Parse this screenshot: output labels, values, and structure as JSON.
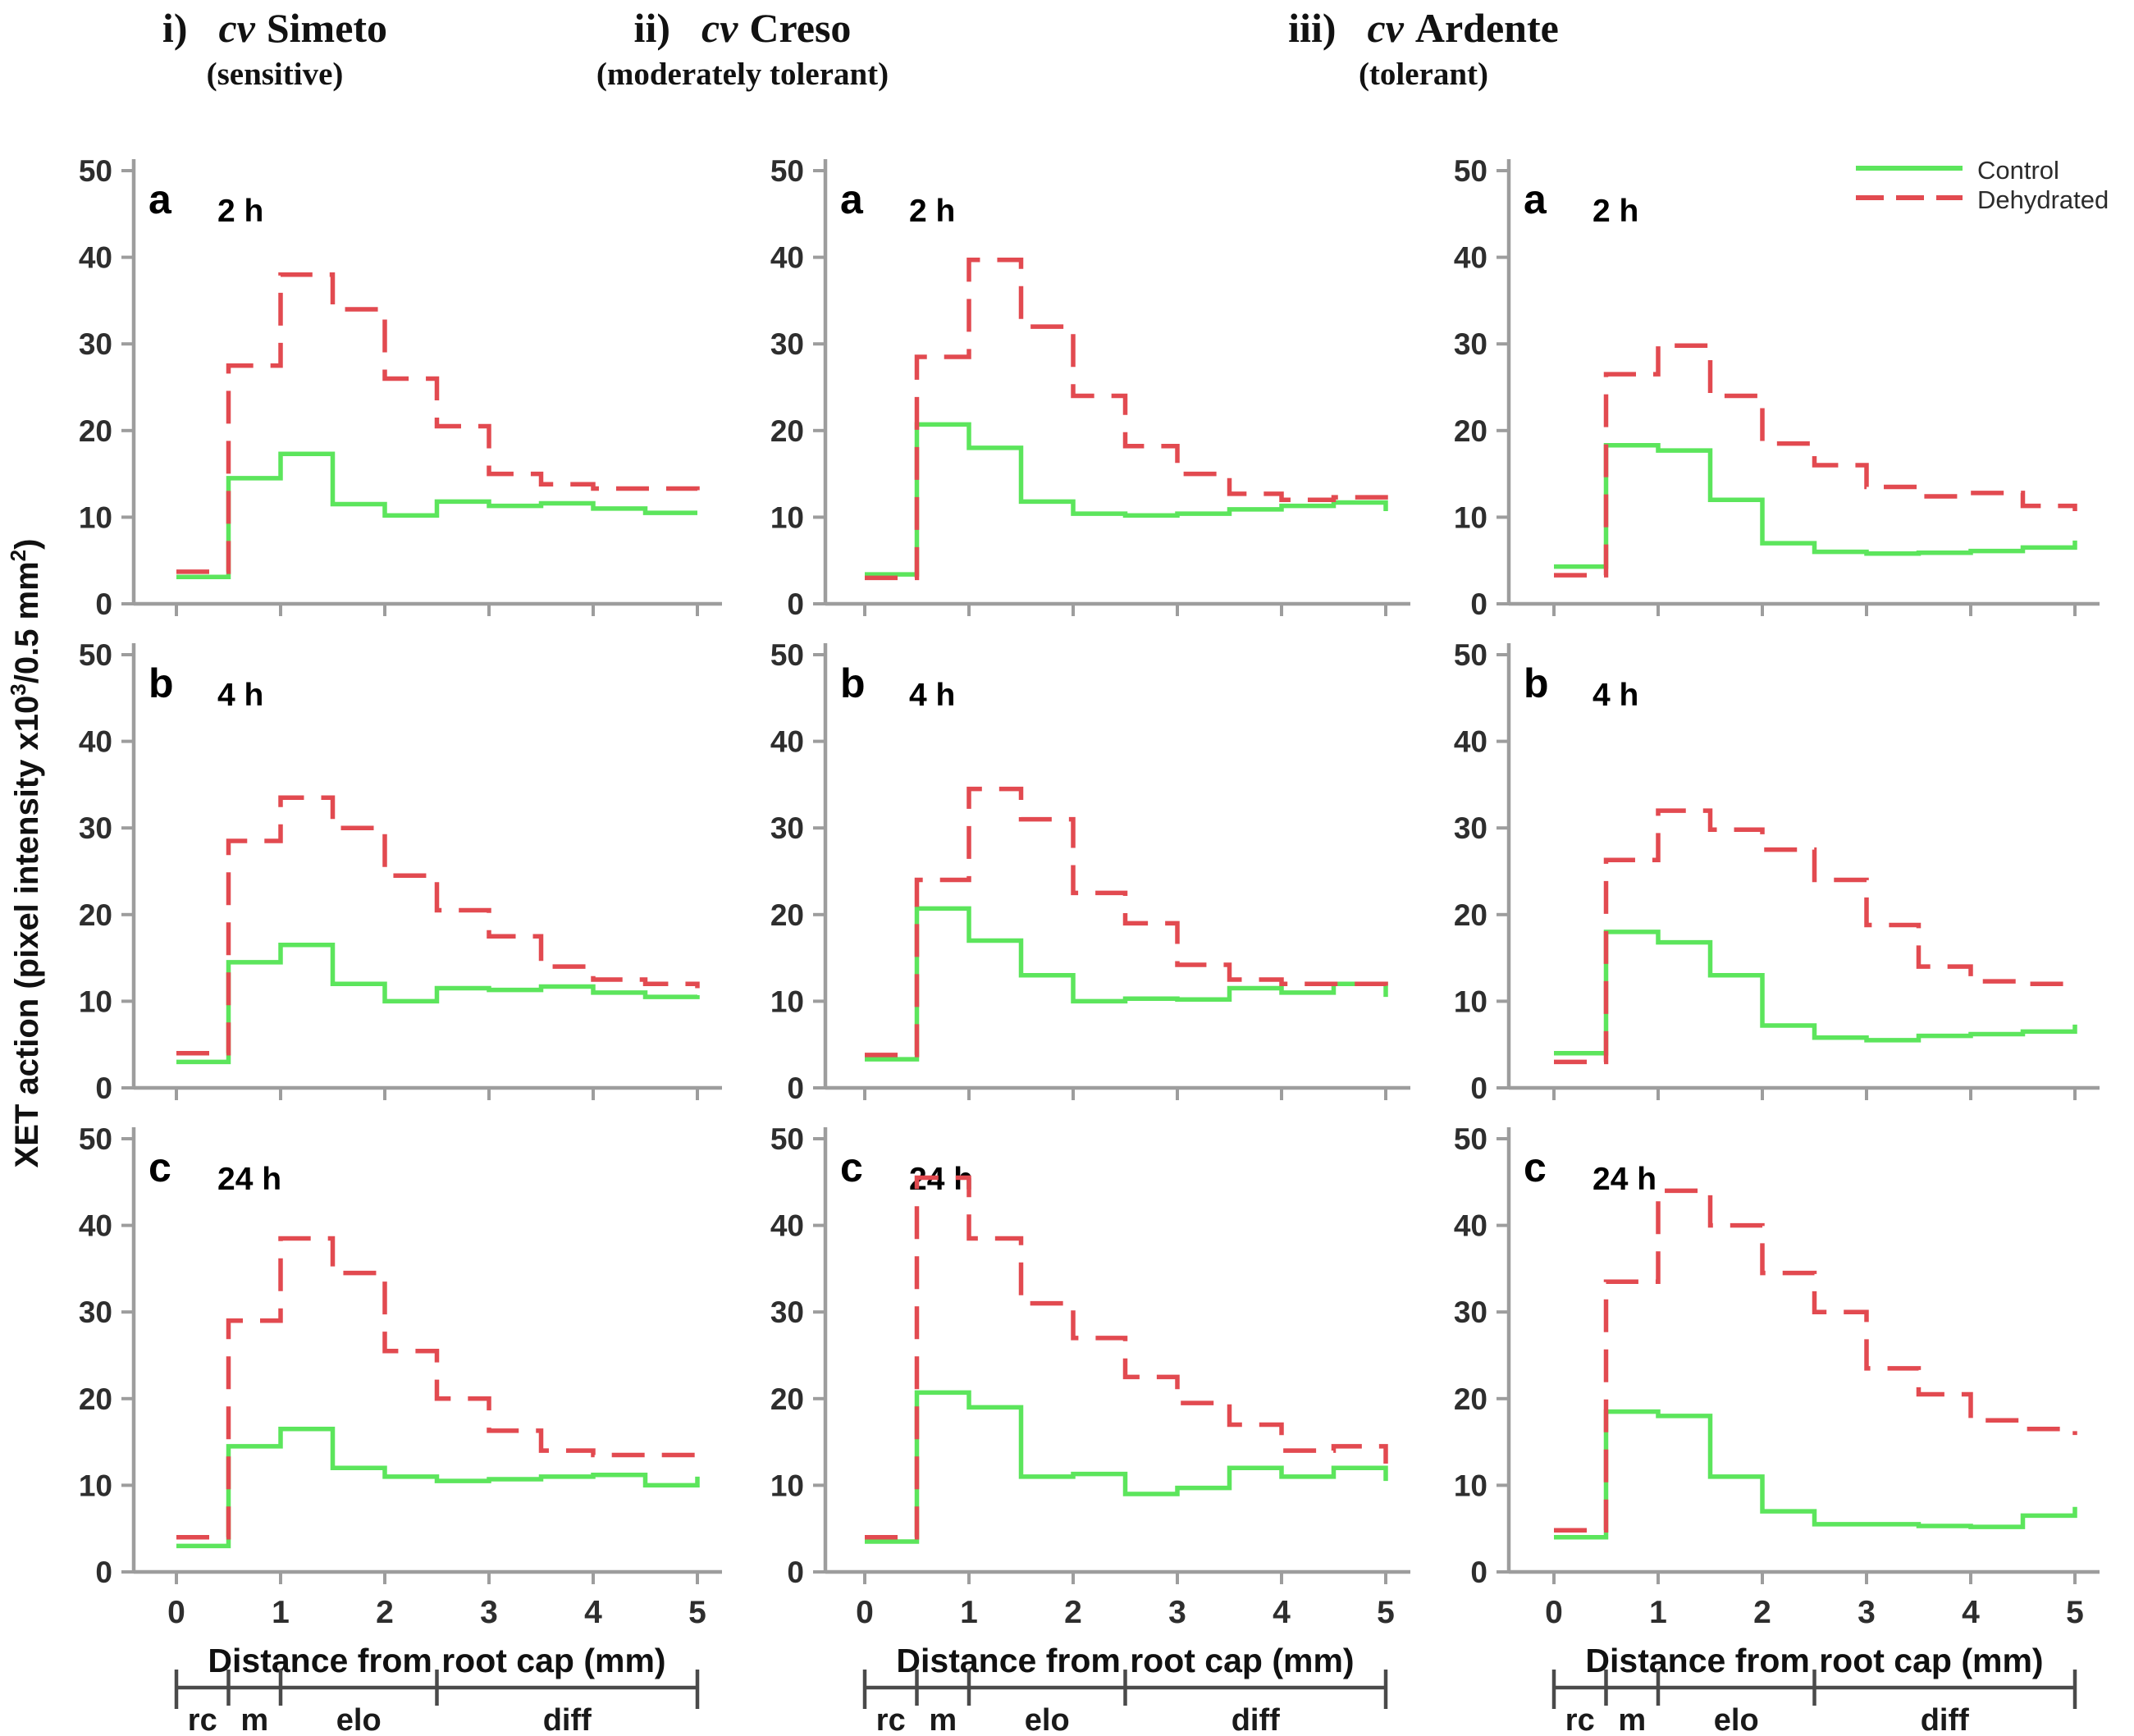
{
  "columns": [
    {
      "numeral": "i)",
      "cv": "cv",
      "name": "Simeto",
      "subtitle": "(sensitive)"
    },
    {
      "numeral": "ii)",
      "cv": "cv",
      "name": "Creso",
      "subtitle": "(moderately tolerant)"
    },
    {
      "numeral": "iii)",
      "cv": "cv",
      "name": "Ardente",
      "subtitle": "(tolerant)"
    }
  ],
  "rows": [
    {
      "letter": "a",
      "time": "2 h"
    },
    {
      "letter": "b",
      "time": "4 h"
    },
    {
      "letter": "c",
      "time": "24 h"
    }
  ],
  "y_axis_label": {
    "prefix": "XET action (pixel intensity x10",
    "sup1": "3",
    "mid": "/0.5 mm",
    "sup2": "2",
    "suffix": ")"
  },
  "legend": {
    "items": [
      {
        "label": "Control",
        "color": "#5CE55C",
        "style": "solid"
      },
      {
        "label": "Dehydrated",
        "color": "#E24A50",
        "style": "dashed"
      }
    ]
  },
  "colors": {
    "control": "#5CE55C",
    "dehydrated": "#E24A50",
    "axis": "#9d9d9d",
    "tick_text": "#2e2e2e",
    "region_bar": "#4a4a4a"
  },
  "chart_data": {
    "type": "step-line",
    "title": "",
    "xlabel": "Distance from root cap (mm)",
    "ylabel": "XET action (pixel intensity x10³/0.5 mm²)",
    "x_ticks": [
      0,
      1,
      2,
      3,
      4,
      5
    ],
    "y_ticks": [
      0,
      10,
      20,
      30,
      40,
      50
    ],
    "x_range": [
      0,
      5
    ],
    "y_range": [
      0,
      50
    ],
    "grid": false,
    "legend_position": "top-right",
    "x_bin_edges_mm": [
      0,
      0.5,
      1,
      1.5,
      2,
      2.5,
      3,
      3.5,
      4,
      4.5,
      5
    ],
    "region_bar": {
      "boundaries_mm": [
        0,
        0.5,
        1,
        2.5,
        5
      ],
      "labels": [
        "rc",
        "m",
        "elo",
        "diff"
      ]
    },
    "panels": [
      {
        "col": 0,
        "row": 0,
        "cultivar": "cv Simeto",
        "time": "2 h",
        "series": [
          {
            "name": "Control",
            "values": [
              3.1,
              14.5,
              17.3,
              11.5,
              10.2,
              11.8,
              11.3,
              11.6,
              11.0,
              10.5
            ],
            "end_value": 10.5
          },
          {
            "name": "Dehydrated",
            "values": [
              3.7,
              27.5,
              38.0,
              34.0,
              26.0,
              20.5,
              15.0,
              13.8,
              13.3,
              13.3
            ],
            "end_value": 12.8
          }
        ]
      },
      {
        "col": 0,
        "row": 1,
        "cultivar": "cv Simeto",
        "time": "4 h",
        "series": [
          {
            "name": "Control",
            "values": [
              3.0,
              14.5,
              16.5,
              12.0,
              10.0,
              11.5,
              11.3,
              11.7,
              11.0,
              10.5
            ],
            "end_value": 10.7
          },
          {
            "name": "Dehydrated",
            "values": [
              4.0,
              28.5,
              33.5,
              30.0,
              24.5,
              20.5,
              17.5,
              14.0,
              12.5,
              12.0
            ],
            "end_value": 11.5
          }
        ]
      },
      {
        "col": 0,
        "row": 2,
        "cultivar": "cv Simeto",
        "time": "24 h",
        "series": [
          {
            "name": "Control",
            "values": [
              3.0,
              14.5,
              16.5,
              12.0,
              11.0,
              10.5,
              10.7,
              11.0,
              11.2,
              10.0
            ],
            "end_value": 11.0
          },
          {
            "name": "Dehydrated",
            "values": [
              4.0,
              29.0,
              38.5,
              34.5,
              25.5,
              20.0,
              16.3,
              14.0,
              13.5,
              13.5
            ],
            "end_value": 13.0
          }
        ]
      },
      {
        "col": 1,
        "row": 0,
        "cultivar": "cv Creso",
        "time": "2 h",
        "series": [
          {
            "name": "Control",
            "values": [
              3.4,
              20.7,
              18.0,
              11.8,
              10.4,
              10.2,
              10.4,
              10.9,
              11.3,
              11.7
            ],
            "end_value": 10.7
          },
          {
            "name": "Dehydrated",
            "values": [
              3.0,
              28.5,
              39.7,
              32.0,
              24.0,
              18.2,
              15.0,
              12.7,
              12.0,
              12.3
            ],
            "end_value": 10.8
          }
        ]
      },
      {
        "col": 1,
        "row": 1,
        "cultivar": "cv Creso",
        "time": "4 h",
        "series": [
          {
            "name": "Control",
            "values": [
              3.3,
              20.7,
              17.0,
              13.0,
              10.0,
              10.3,
              10.2,
              11.5,
              11.0,
              12.0
            ],
            "end_value": 10.5
          },
          {
            "name": "Dehydrated",
            "values": [
              3.8,
              24.0,
              34.5,
              31.0,
              22.5,
              19.0,
              14.2,
              12.5,
              12.0,
              12.0
            ],
            "end_value": 10.5
          }
        ]
      },
      {
        "col": 1,
        "row": 2,
        "cultivar": "cv Creso",
        "time": "24 h",
        "series": [
          {
            "name": "Control",
            "values": [
              3.5,
              20.7,
              19.0,
              11.0,
              11.3,
              9.0,
              9.7,
              12.0,
              11.0,
              12.0
            ],
            "end_value": 10.5
          },
          {
            "name": "Dehydrated",
            "values": [
              4.0,
              45.5,
              38.5,
              31.0,
              27.0,
              22.5,
              19.5,
              17.0,
              14.0,
              14.5
            ],
            "end_value": 12.5
          }
        ]
      },
      {
        "col": 2,
        "row": 0,
        "cultivar": "cv Ardente",
        "time": "2 h",
        "series": [
          {
            "name": "Control",
            "values": [
              4.3,
              18.3,
              17.7,
              12.0,
              7.0,
              6.0,
              5.8,
              5.9,
              6.1,
              6.5
            ],
            "end_value": 7.3
          },
          {
            "name": "Dehydrated",
            "values": [
              3.3,
              26.5,
              29.8,
              24.0,
              18.5,
              16.0,
              13.5,
              12.4,
              12.8,
              11.3
            ],
            "end_value": 10.7
          }
        ]
      },
      {
        "col": 2,
        "row": 1,
        "cultivar": "cv Ardente",
        "time": "4 h",
        "series": [
          {
            "name": "Control",
            "values": [
              4.0,
              18.0,
              16.8,
              13.0,
              7.2,
              5.8,
              5.5,
              6.0,
              6.2,
              6.5
            ],
            "end_value": 7.3
          },
          {
            "name": "Dehydrated",
            "values": [
              3.0,
              26.3,
              32.0,
              29.8,
              27.5,
              24.0,
              18.8,
              14.0,
              12.3,
              12.0
            ],
            "end_value": 11.8
          }
        ]
      },
      {
        "col": 2,
        "row": 2,
        "cultivar": "cv Ardente",
        "time": "24 h",
        "series": [
          {
            "name": "Control",
            "values": [
              4.0,
              18.5,
              18.0,
              11.0,
              7.0,
              5.5,
              5.5,
              5.3,
              5.2,
              6.5
            ],
            "end_value": 7.5
          },
          {
            "name": "Dehydrated",
            "values": [
              4.8,
              33.5,
              44.0,
              40.0,
              34.5,
              30.0,
              23.5,
              20.5,
              17.5,
              16.5
            ],
            "end_value": 15.8
          }
        ]
      }
    ]
  }
}
